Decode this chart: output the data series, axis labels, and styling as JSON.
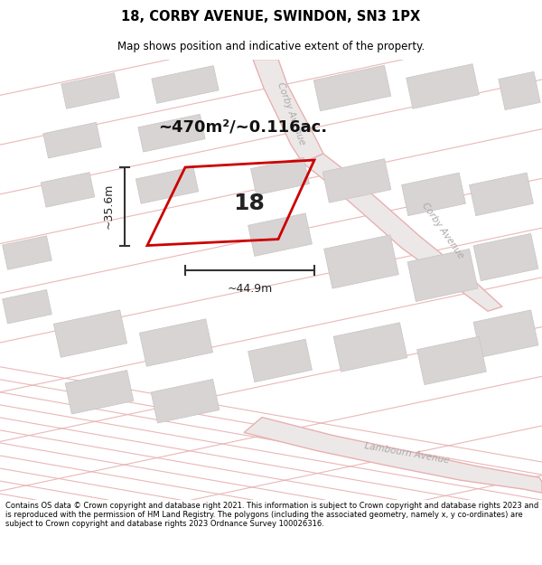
{
  "title": "18, CORBY AVENUE, SWINDON, SN3 1PX",
  "subtitle": "Map shows position and indicative extent of the property.",
  "footer": "Contains OS data © Crown copyright and database right 2021. This information is subject to Crown copyright and database rights 2023 and is reproduced with the permission of HM Land Registry. The polygons (including the associated geometry, namely x, y co-ordinates) are subject to Crown copyright and database rights 2023 Ordnance Survey 100026316.",
  "plot_color": "#cc0000",
  "building_color": "#d8d4d4",
  "building_edge": "#c8c4c4",
  "road_line_color": "#e8b0b0",
  "road_fill_color": "#f5eeee",
  "area_text": "~470m²/~0.116ac.",
  "width_text": "~44.9m",
  "height_text": "~35.6m",
  "number_text": "18"
}
